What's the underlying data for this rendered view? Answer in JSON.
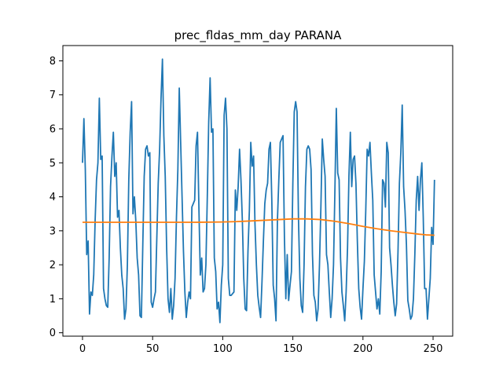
{
  "chart_data": {
    "type": "line",
    "title": "prec_fldas_mm_day PARANA",
    "xlabel": "",
    "ylabel": "",
    "xlim": [
      -14,
      264
    ],
    "ylim": [
      -0.1,
      8.45
    ],
    "xticks": [
      0,
      50,
      100,
      150,
      200,
      250
    ],
    "yticks": [
      0,
      1,
      2,
      3,
      4,
      5,
      6,
      7,
      8
    ],
    "grid": false,
    "colors": {
      "series1": "#1f77b4",
      "series2": "#ff7f0e"
    },
    "series": [
      {
        "x": [
          0,
          1,
          2,
          3,
          4,
          5,
          6,
          7,
          8,
          9,
          10,
          11,
          12,
          13,
          14,
          15,
          16,
          17,
          18,
          19,
          20,
          21,
          22,
          23,
          24,
          25,
          26,
          27,
          28,
          29,
          30,
          31,
          32,
          33,
          34,
          35,
          36,
          37,
          38,
          39,
          40,
          41,
          42,
          43,
          44,
          45,
          46,
          47,
          48,
          49,
          50,
          51,
          52,
          53,
          54,
          55,
          56,
          57,
          58,
          59,
          60,
          61,
          62,
          63,
          64,
          65,
          66,
          67,
          68,
          69,
          70,
          71,
          72,
          73,
          74,
          75,
          76,
          77,
          78,
          79,
          80,
          81,
          82,
          83,
          84,
          85,
          86,
          87,
          88,
          89,
          90,
          91,
          92,
          93,
          94,
          95,
          96,
          97,
          98,
          99,
          100,
          101,
          102,
          103,
          104,
          105,
          106,
          107,
          108,
          109,
          110,
          111,
          112,
          113,
          114,
          115,
          116,
          117,
          118,
          119,
          120,
          121,
          122,
          123,
          124,
          125,
          126,
          127,
          128,
          129,
          130,
          131,
          132,
          133,
          134,
          135,
          136,
          137,
          138,
          139,
          140,
          141,
          142,
          143,
          144,
          145,
          146,
          147,
          148,
          149,
          150,
          151,
          152,
          153,
          154,
          155,
          156,
          157,
          158,
          159,
          160,
          161,
          162,
          163,
          164,
          165,
          166,
          167,
          168,
          169,
          170,
          171,
          172,
          173,
          174,
          175,
          176,
          177,
          178,
          179,
          180,
          181,
          182,
          183,
          184,
          185,
          186,
          187,
          188,
          189,
          190,
          191,
          192,
          193,
          194,
          195,
          196,
          197,
          198,
          199,
          200,
          201,
          202,
          203,
          204,
          205,
          206,
          207,
          208,
          209,
          210,
          211,
          212,
          213,
          214,
          215,
          216,
          217,
          218,
          219,
          220,
          221,
          222,
          223,
          224,
          225,
          226,
          227,
          228,
          229,
          230,
          231,
          232,
          233,
          234,
          235,
          236,
          237,
          238,
          239,
          240,
          241,
          242,
          243,
          244,
          245,
          246,
          247,
          248,
          249,
          250,
          251
        ],
        "values": [
          5.0,
          6.3,
          4.8,
          2.3,
          2.7,
          0.55,
          1.2,
          1.1,
          1.7,
          3.3,
          4.5,
          5.0,
          6.9,
          5.1,
          5.2,
          1.3,
          1.0,
          0.8,
          0.75,
          2.2,
          4.3,
          5.2,
          5.9,
          4.6,
          5.0,
          3.4,
          3.6,
          2.5,
          1.7,
          1.3,
          0.4,
          0.7,
          2.0,
          4.5,
          5.9,
          6.8,
          3.5,
          4.0,
          3.3,
          2.2,
          1.7,
          0.5,
          0.45,
          2.6,
          4.6,
          5.4,
          5.5,
          5.2,
          5.3,
          0.9,
          0.75,
          1.0,
          1.2,
          2.8,
          4.4,
          5.4,
          6.9,
          8.05,
          5.8,
          4.6,
          2.5,
          1.0,
          0.6,
          1.3,
          0.4,
          0.8,
          1.6,
          3.4,
          4.8,
          7.2,
          5.6,
          4.0,
          2.4,
          1.2,
          0.45,
          0.9,
          1.2,
          1.0,
          3.7,
          3.8,
          3.9,
          5.5,
          5.9,
          3.7,
          1.7,
          2.2,
          1.2,
          1.3,
          2.0,
          4.0,
          6.2,
          7.5,
          5.9,
          6.0,
          2.2,
          1.8,
          0.7,
          0.9,
          0.3,
          1.4,
          2.0,
          6.4,
          6.9,
          6.0,
          1.6,
          1.1,
          1.1,
          1.15,
          1.2,
          4.2,
          3.6,
          4.3,
          5.4,
          4.5,
          3.3,
          1.6,
          0.7,
          0.65,
          2.4,
          3.6,
          5.6,
          4.9,
          5.2,
          3.2,
          2.0,
          1.1,
          0.75,
          0.45,
          1.5,
          2.7,
          3.8,
          4.2,
          4.4,
          5.4,
          5.6,
          3.9,
          1.4,
          1.0,
          0.35,
          3.3,
          4.5,
          5.6,
          5.7,
          5.8,
          2.8,
          1.0,
          2.3,
          0.95,
          1.4,
          1.8,
          4.4,
          6.5,
          6.8,
          6.5,
          3.4,
          1.6,
          0.8,
          0.6,
          2.0,
          4.3,
          5.4,
          5.5,
          5.4,
          4.8,
          2.3,
          1.1,
          0.9,
          0.35,
          0.7,
          2.0,
          3.7,
          5.7,
          5.1,
          4.6,
          2.3,
          2.0,
          1.2,
          0.45,
          1.0,
          2.0,
          4.2,
          6.6,
          4.7,
          4.5,
          2.2,
          1.2,
          0.8,
          0.35,
          1.2,
          2.5,
          4.6,
          5.9,
          4.3,
          5.1,
          5.2,
          4.4,
          2.7,
          1.3,
          0.75,
          0.4,
          1.3,
          2.1,
          3.6,
          5.4,
          5.2,
          5.6,
          4.7,
          3.9,
          1.7,
          1.2,
          0.7,
          1.0,
          0.55,
          1.8,
          4.5,
          4.4,
          3.7,
          5.6,
          5.3,
          2.5,
          2.0,
          1.4,
          0.9,
          0.5,
          0.85,
          2.4,
          4.4,
          5.3,
          6.7,
          4.3,
          3.6,
          2.6,
          0.95,
          0.7,
          0.4,
          0.5,
          1.0,
          2.3,
          3.9,
          4.6,
          3.6,
          4.5,
          5.0,
          3.4,
          1.3,
          1.3,
          0.4,
          1.0,
          1.6,
          3.1,
          2.6,
          4.5
        ]
      },
      {
        "x": [
          0,
          20,
          40,
          60,
          80,
          100,
          110,
          120,
          130,
          140,
          150,
          160,
          170,
          180,
          190,
          200,
          210,
          220,
          230,
          240,
          245,
          251
        ],
        "values": [
          3.25,
          3.25,
          3.25,
          3.25,
          3.25,
          3.26,
          3.27,
          3.29,
          3.31,
          3.33,
          3.35,
          3.35,
          3.33,
          3.28,
          3.21,
          3.13,
          3.06,
          3.0,
          2.95,
          2.9,
          2.88,
          2.87
        ]
      }
    ]
  }
}
